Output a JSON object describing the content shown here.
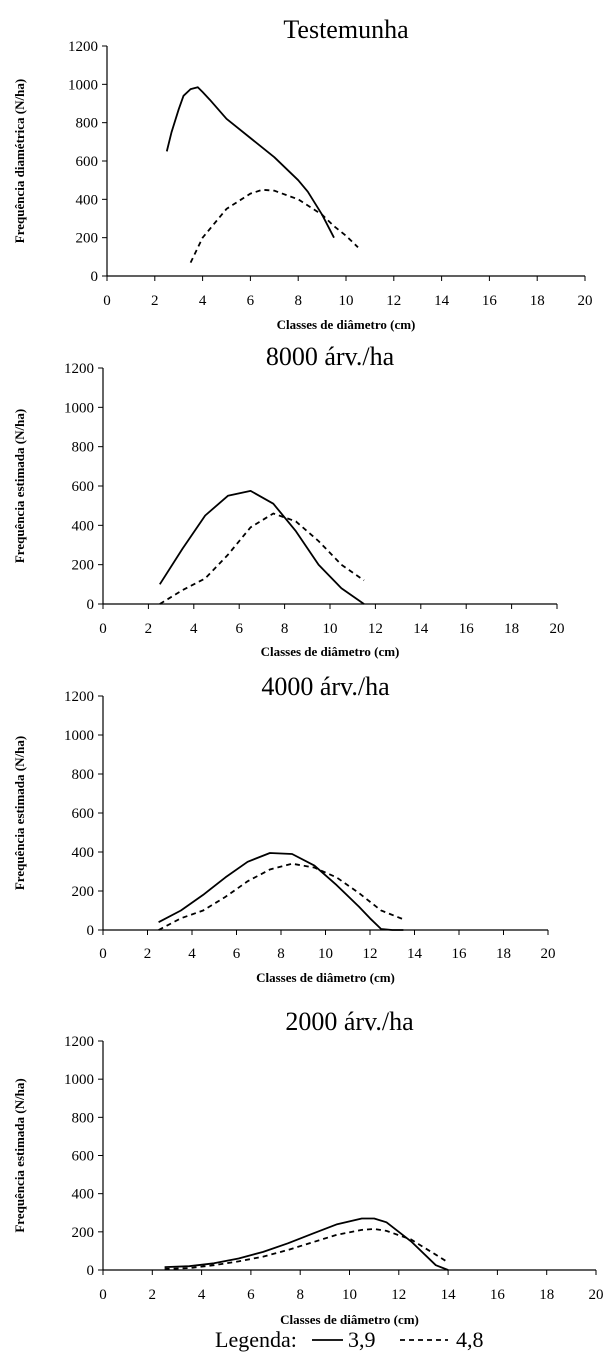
{
  "legend": {
    "prefix": "Legenda:",
    "series_labels": [
      "3,9",
      "4,8"
    ]
  },
  "chart_data": [
    {
      "type": "line",
      "title": "Testemunha",
      "xlabel": "Classes de diâmetro (cm)",
      "ylabel": "Frequência diamétrica (N/ha)",
      "xlim": [
        0,
        20
      ],
      "ylim": [
        0,
        1200
      ],
      "xticks": [
        0,
        2,
        4,
        6,
        8,
        10,
        12,
        14,
        16,
        18,
        20
      ],
      "yticks": [
        0,
        200,
        400,
        600,
        800,
        1000,
        1200
      ],
      "grid": false,
      "series": [
        {
          "name": "3,9",
          "style": "solid",
          "x": [
            2.5,
            2.7,
            3.0,
            3.2,
            3.5,
            3.8,
            4.0,
            4.3,
            5.0,
            6.0,
            7.0,
            8.0,
            8.4,
            9.0,
            9.5
          ],
          "y": [
            650,
            750,
            870,
            940,
            975,
            985,
            960,
            920,
            820,
            720,
            620,
            500,
            440,
            320,
            200
          ]
        },
        {
          "name": "4,8",
          "style": "dotted",
          "x": [
            3.5,
            4.0,
            5.0,
            6.0,
            6.5,
            7.0,
            8.0,
            9.0,
            9.5,
            10.0,
            10.5
          ],
          "y": [
            70,
            200,
            350,
            430,
            450,
            445,
            400,
            320,
            260,
            210,
            150
          ]
        }
      ]
    },
    {
      "type": "line",
      "title": "8000 árv./ha",
      "xlabel": "Classes de diâmetro (cm)",
      "ylabel": "Frequência estimada (N/ha)",
      "xlim": [
        0,
        20
      ],
      "ylim": [
        0,
        1200
      ],
      "xticks": [
        0,
        2,
        4,
        6,
        8,
        10,
        12,
        14,
        16,
        18,
        20
      ],
      "yticks": [
        0,
        200,
        400,
        600,
        800,
        1000,
        1200
      ],
      "grid": false,
      "series": [
        {
          "name": "3,9",
          "style": "solid",
          "x": [
            2.5,
            3.5,
            4.5,
            5.5,
            6.5,
            7.5,
            8.5,
            9.5,
            10.5,
            11.5
          ],
          "y": [
            100,
            280,
            450,
            550,
            575,
            510,
            370,
            200,
            80,
            0
          ]
        },
        {
          "name": "4,8",
          "style": "dashed",
          "x": [
            2.5,
            3.5,
            4.5,
            5.5,
            6.5,
            7.5,
            8.5,
            9.5,
            10.5,
            11.5
          ],
          "y": [
            0,
            70,
            130,
            250,
            390,
            460,
            420,
            320,
            200,
            120
          ]
        }
      ]
    },
    {
      "type": "line",
      "title": "4000 árv./ha",
      "xlabel": "Classes de diâmetro (cm)",
      "ylabel": "Frequência estimada (N/ha)",
      "xlim": [
        0,
        20
      ],
      "ylim": [
        0,
        1200
      ],
      "xticks": [
        0,
        2,
        4,
        6,
        8,
        10,
        12,
        14,
        16,
        18,
        20
      ],
      "yticks": [
        0,
        200,
        400,
        600,
        800,
        1000,
        1200
      ],
      "grid": false,
      "series": [
        {
          "name": "3,9",
          "style": "solid",
          "x": [
            2.5,
            3.5,
            4.5,
            5.5,
            6.5,
            7.5,
            8.5,
            9.5,
            10.5,
            11.5,
            12.0,
            12.5,
            13.0,
            13.5
          ],
          "y": [
            40,
            100,
            180,
            270,
            350,
            395,
            390,
            330,
            230,
            120,
            60,
            5,
            0,
            0
          ]
        },
        {
          "name": "4,8",
          "style": "dashed",
          "x": [
            2.5,
            3.5,
            4.5,
            5.5,
            6.5,
            7.5,
            8.5,
            9.5,
            10.5,
            11.5,
            12.5,
            13.5
          ],
          "y": [
            0,
            60,
            100,
            170,
            250,
            310,
            340,
            320,
            270,
            190,
            100,
            55
          ]
        }
      ]
    },
    {
      "type": "line",
      "title": "2000 árv./ha",
      "xlabel": "Classes de diâmetro (cm)",
      "ylabel": "Frequência estimada (N/ha)",
      "xlim": [
        0,
        20
      ],
      "ylim": [
        0,
        1200
      ],
      "xticks": [
        0,
        2,
        4,
        6,
        8,
        10,
        12,
        14,
        16,
        18,
        20
      ],
      "yticks": [
        0,
        200,
        400,
        600,
        800,
        1000,
        1200
      ],
      "grid": false,
      "series": [
        {
          "name": "3,9",
          "style": "solid",
          "x": [
            2.5,
            3.5,
            4.5,
            5.5,
            6.5,
            7.5,
            8.5,
            9.5,
            10.5,
            11.0,
            11.5,
            12.5,
            13.5,
            14.0
          ],
          "y": [
            15,
            20,
            35,
            60,
            95,
            140,
            190,
            240,
            270,
            270,
            250,
            150,
            25,
            0
          ]
        },
        {
          "name": "4,8",
          "style": "dashed",
          "x": [
            2.5,
            3.5,
            4.5,
            5.5,
            6.5,
            7.5,
            8.5,
            9.5,
            10.5,
            11.0,
            11.5,
            12.5,
            13.5,
            14.0
          ],
          "y": [
            5,
            10,
            25,
            45,
            70,
            105,
            145,
            185,
            210,
            215,
            205,
            160,
            80,
            40
          ]
        }
      ]
    }
  ]
}
